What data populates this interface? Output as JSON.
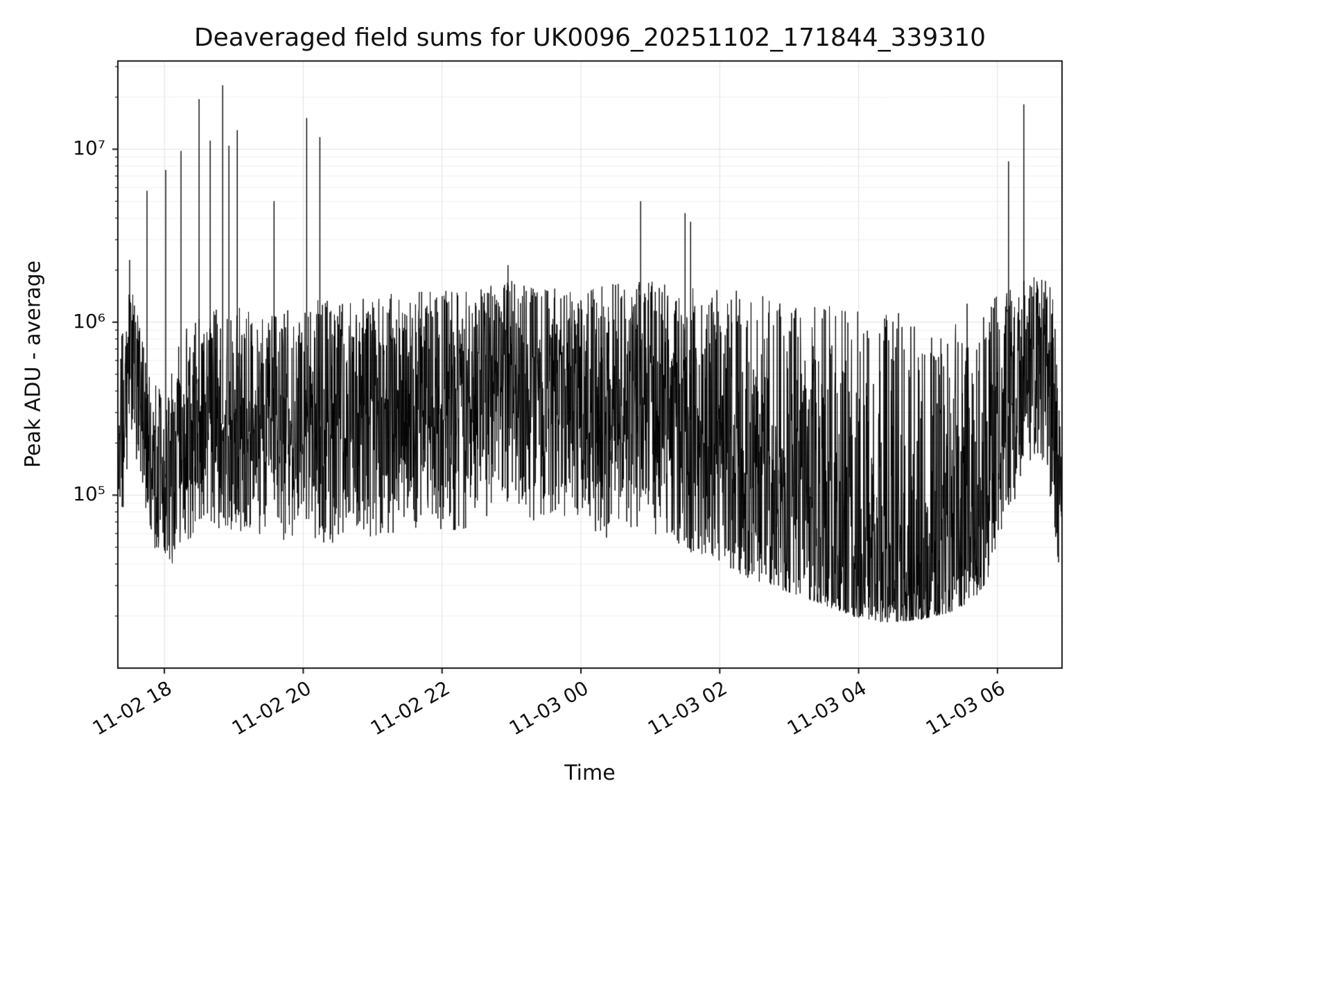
{
  "page": {
    "background": "#ffffff"
  },
  "chart_data": {
    "type": "line",
    "title": "Deaveraged field sums for UK0096_20251102_171844_339310",
    "xlabel": "Time",
    "ylabel": "Peak ADU - average",
    "yscale": "log",
    "ylim": [
      10000,
      32000000
    ],
    "grid": true,
    "legend": null,
    "line_color": "#000000",
    "grid_major_color": "#e0e0e0",
    "grid_minor_color": "#efefef",
    "spine_color": "#141414",
    "x_hours_range": [
      17.33,
      30.93
    ],
    "ylog_range": [
      4.0,
      7.51
    ],
    "x_ticks": [
      {
        "hour": 18,
        "label": "11-02 18"
      },
      {
        "hour": 20,
        "label": "11-02 20"
      },
      {
        "hour": 22,
        "label": "11-02 22"
      },
      {
        "hour": 24,
        "label": "11-03 00"
      },
      {
        "hour": 26,
        "label": "11-03 02"
      },
      {
        "hour": 28,
        "label": "11-03 04"
      },
      {
        "hour": 30,
        "label": "11-03 06"
      }
    ],
    "y_ticks": [
      {
        "log": 5,
        "label": "10⁵"
      },
      {
        "log": 6,
        "label": "10⁶"
      },
      {
        "log": 7,
        "label": "10⁷"
      }
    ],
    "envelope_points": [
      [
        17.33,
        4.95,
        5.45,
        1.0
      ],
      [
        17.4,
        4.9,
        6.1,
        0.9
      ],
      [
        17.55,
        5.3,
        6.2,
        0.8
      ],
      [
        17.7,
        4.95,
        5.95,
        1.0
      ],
      [
        17.85,
        4.7,
        5.7,
        1.2
      ],
      [
        18.0,
        4.62,
        5.55,
        1.3
      ],
      [
        18.15,
        4.6,
        5.8,
        1.2
      ],
      [
        18.35,
        4.7,
        6.05,
        1.0
      ],
      [
        18.6,
        4.85,
        6.05,
        0.95
      ],
      [
        18.9,
        4.7,
        6.1,
        0.95
      ],
      [
        19.2,
        4.8,
        6.1,
        0.95
      ],
      [
        19.6,
        4.72,
        6.05,
        1.0
      ],
      [
        20.0,
        4.78,
        6.1,
        0.95
      ],
      [
        20.4,
        4.7,
        6.15,
        0.95
      ],
      [
        20.9,
        4.75,
        6.15,
        0.95
      ],
      [
        21.4,
        4.78,
        6.18,
        0.92
      ],
      [
        21.9,
        4.8,
        6.18,
        0.92
      ],
      [
        22.4,
        4.75,
        6.22,
        0.9
      ],
      [
        22.9,
        4.85,
        6.25,
        0.88
      ],
      [
        23.4,
        4.85,
        6.2,
        0.9
      ],
      [
        23.9,
        4.8,
        6.2,
        0.92
      ],
      [
        24.4,
        4.75,
        6.22,
        0.95
      ],
      [
        24.9,
        4.8,
        6.25,
        0.95
      ],
      [
        25.4,
        4.7,
        6.2,
        1.05
      ],
      [
        25.9,
        4.62,
        6.2,
        1.2
      ],
      [
        26.4,
        4.52,
        6.18,
        1.45
      ],
      [
        26.9,
        4.45,
        6.15,
        1.65
      ],
      [
        27.4,
        4.38,
        6.12,
        1.95
      ],
      [
        27.9,
        4.3,
        6.1,
        2.25
      ],
      [
        28.4,
        4.26,
        6.08,
        2.5
      ],
      [
        28.9,
        4.28,
        6.06,
        2.5
      ],
      [
        29.4,
        4.33,
        6.1,
        2.25
      ],
      [
        29.8,
        4.45,
        6.12,
        1.7
      ],
      [
        30.1,
        4.8,
        6.18,
        1.1
      ],
      [
        30.4,
        5.15,
        6.25,
        0.85
      ],
      [
        30.65,
        5.2,
        6.28,
        0.8
      ],
      [
        30.8,
        4.9,
        6.2,
        1.0
      ],
      [
        30.93,
        4.4,
        5.2,
        1.0
      ]
    ],
    "spikes": [
      [
        17.5,
        6.36
      ],
      [
        17.75,
        6.76
      ],
      [
        18.02,
        6.88
      ],
      [
        18.24,
        6.99
      ],
      [
        18.5,
        7.29
      ],
      [
        18.66,
        7.05
      ],
      [
        18.84,
        7.37
      ],
      [
        18.93,
        7.02
      ],
      [
        19.05,
        7.11
      ],
      [
        19.58,
        6.7
      ],
      [
        20.05,
        7.18
      ],
      [
        20.24,
        7.07
      ],
      [
        22.95,
        6.33
      ],
      [
        24.86,
        6.7
      ],
      [
        25.5,
        6.63
      ],
      [
        25.58,
        6.58
      ],
      [
        30.16,
        6.93
      ],
      [
        30.38,
        7.26
      ]
    ]
  }
}
